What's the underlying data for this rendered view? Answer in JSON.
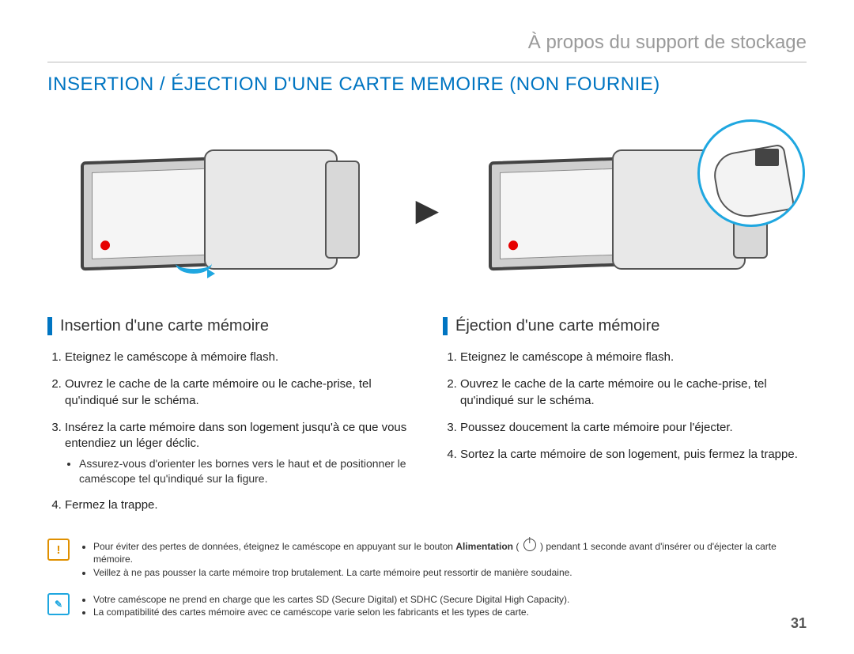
{
  "breadcrumb": "À propos du support de stockage",
  "title": "INSERTION / ÉJECTION D'UNE CARTE MEMOIRE (NON FOURNIE)",
  "arrow_glyph": "▶",
  "columns": {
    "left": {
      "heading": "Insertion d'une carte mémoire",
      "steps": [
        "Eteignez le caméscope à mémoire flash.",
        "Ouvrez le cache de la carte mémoire ou le cache-prise, tel qu'indiqué sur le schéma.",
        "Insérez la carte mémoire dans son logement jusqu'à ce que vous entendiez un léger déclic.",
        "Fermez la trappe."
      ],
      "substeps_for_3": [
        "Assurez-vous d'orienter les bornes vers le haut et de positionner le caméscope tel qu'indiqué sur la figure."
      ]
    },
    "right": {
      "heading": "Éjection d'une carte mémoire",
      "steps": [
        "Eteignez le caméscope à mémoire flash.",
        "Ouvrez le cache de la carte mémoire ou le cache-prise, tel qu'indiqué sur le schéma.",
        "Poussez doucement la carte mémoire pour l'éjecter.",
        "Sortez la carte mémoire de son logement, puis fermez la trappe."
      ]
    }
  },
  "warning_items": [
    {
      "pre": "Pour éviter des pertes de données, éteignez le caméscope en appuyant sur le bouton ",
      "bold": "Alimentation",
      "post": " ( ⏻ ) pendant 1 seconde avant d'insérer ou d'éjecter la carte mémoire."
    },
    {
      "pre": "Veillez à ne pas pousser la carte mémoire trop brutalement. La carte mémoire peut ressortir de manière soudaine.",
      "bold": "",
      "post": ""
    }
  ],
  "info_items": [
    "Votre caméscope ne prend en charge que les cartes SD (Secure Digital) et SDHC (Secure Digital High Capacity).",
    "La compatibilité des cartes mémoire avec ce caméscope varie selon les fabricants et les types de carte."
  ],
  "page_number": "31",
  "colors": {
    "accent_blue": "#0075c2",
    "light_blue": "#1fa7e0",
    "warn_orange": "#e09000",
    "grey_text": "#9a9a9a"
  }
}
